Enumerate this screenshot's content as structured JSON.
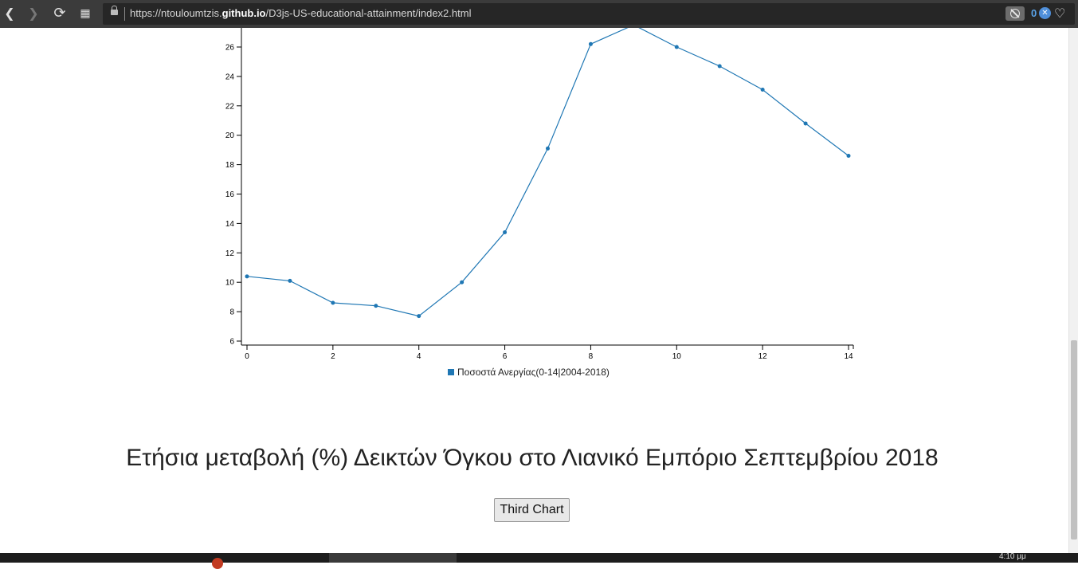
{
  "browser": {
    "url_prefix": "https://ntouloumtzis.",
    "url_domain": "github.io",
    "url_path": "/D3js-US-educational-attainment/index2.html",
    "badge_count": "0"
  },
  "chart_data": {
    "type": "line",
    "x": [
      0,
      1,
      2,
      3,
      4,
      5,
      6,
      7,
      8,
      9,
      10,
      11,
      12,
      13,
      14
    ],
    "series": [
      {
        "name": "Ποσοστά Ανεργίας(0-14|2004-2018)",
        "values": [
          10.4,
          10.1,
          8.6,
          8.4,
          7.7,
          10.0,
          13.4,
          19.1,
          26.2,
          27.5,
          26.0,
          24.7,
          23.1,
          20.8,
          18.6
        ]
      }
    ],
    "x_ticks": [
      0,
      2,
      4,
      6,
      8,
      10,
      12,
      14
    ],
    "y_ticks": [
      6,
      8,
      10,
      12,
      14,
      16,
      18,
      20,
      22,
      24,
      26
    ],
    "xlim": [
      0,
      14
    ],
    "ylim": [
      6,
      27.5
    ],
    "line_color": "#1f77b4",
    "legend_position": "bottom-center"
  },
  "page": {
    "title": "Ετήσια μεταβολή (%) Δεικτών Όγκου στο Λιανικό Εμπόριο Σεπτεμβρίου 2018",
    "button_label": "Third Chart"
  },
  "taskbar": {
    "clock": "4:10 μμ"
  }
}
